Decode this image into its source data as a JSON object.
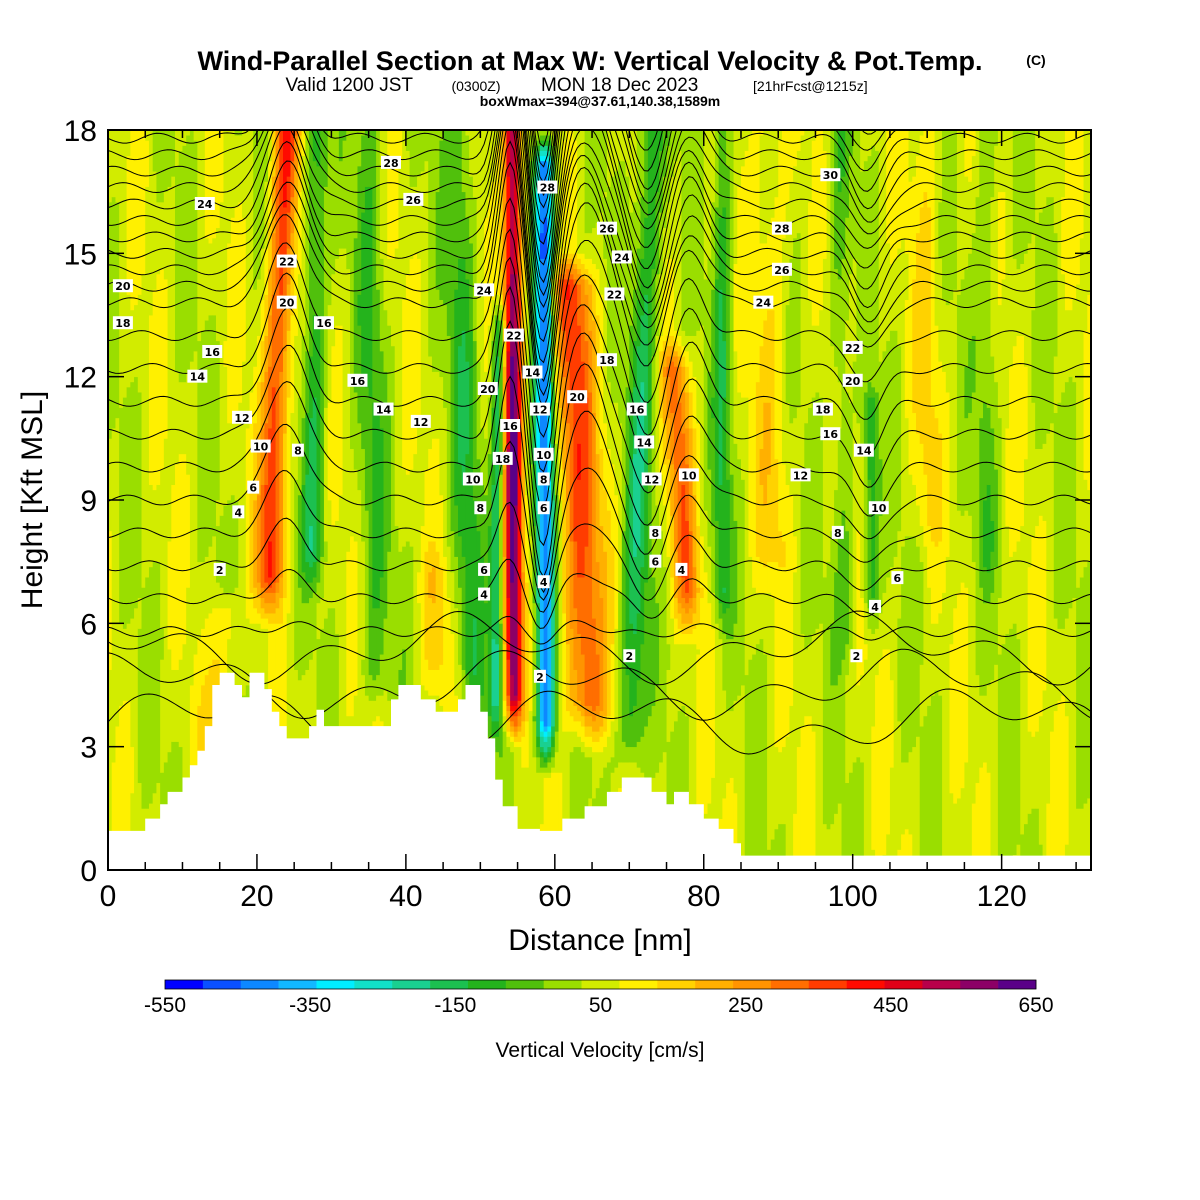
{
  "header": {
    "title": "Wind-Parallel Section at Max W: Vertical Velocity & Pot.Temp.",
    "title_mark": "(C)",
    "sub_valid": "Valid 1200 JST",
    "sub_utc": "(0300Z)",
    "sub_date": "MON 18 Dec 2023",
    "sub_fcst": "[21hrFcst@1215z]",
    "sub_box": "boxWmax=394@37.61,140.38,1589m"
  },
  "chart_data": {
    "type": "heatmap",
    "xlabel": "Distance [nm]",
    "ylabel": "Height [Kft MSL]",
    "xlim": [
      0,
      132
    ],
    "ylim": [
      0,
      18
    ],
    "x_ticks": [
      0,
      20,
      40,
      60,
      80,
      100,
      120
    ],
    "y_ticks": [
      0,
      3,
      6,
      9,
      12,
      15,
      18
    ],
    "colorbar": {
      "title": "Vertical Velocity [cm/s]",
      "min": -550,
      "max": 650,
      "step": 50,
      "tick_values": [
        -550,
        -350,
        -150,
        50,
        250,
        450,
        650
      ],
      "tick_labels": [
        "-550",
        "-350",
        "-150",
        "50",
        "250",
        "450",
        "650"
      ],
      "colors": [
        "#0000ff",
        "#0a50ff",
        "#0d88ff",
        "#12b8ff",
        "#00eeff",
        "#12e0c8",
        "#1ad090",
        "#1cc050",
        "#24b31c",
        "#50c00c",
        "#9ade00",
        "#d2ec00",
        "#fff000",
        "#ffd200",
        "#ffb000",
        "#ff9400",
        "#ff6e00",
        "#ff3c00",
        "#ff0a00",
        "#e00018",
        "#b8004a",
        "#8c0066",
        "#5a0088"
      ]
    },
    "terrain": [
      [
        0,
        0.95
      ],
      [
        5,
        0.95
      ],
      [
        5,
        1.25
      ],
      [
        7,
        1.25
      ],
      [
        7,
        1.6
      ],
      [
        8,
        1.6
      ],
      [
        8,
        1.9
      ],
      [
        10,
        1.9
      ],
      [
        10,
        2.25
      ],
      [
        11,
        2.25
      ],
      [
        11,
        2.55
      ],
      [
        12,
        2.55
      ],
      [
        12,
        2.9
      ],
      [
        13,
        2.9
      ],
      [
        13,
        3.5
      ],
      [
        14,
        3.5
      ],
      [
        14,
        4.5
      ],
      [
        15,
        4.5
      ],
      [
        15,
        4.8
      ],
      [
        17,
        4.8
      ],
      [
        17,
        4.5
      ],
      [
        18,
        4.5
      ],
      [
        18,
        4.2
      ],
      [
        19,
        4.2
      ],
      [
        19,
        4.8
      ],
      [
        21,
        4.8
      ],
      [
        21,
        4.4
      ],
      [
        22,
        4.4
      ],
      [
        22,
        3.85
      ],
      [
        23,
        3.85
      ],
      [
        23,
        3.5
      ],
      [
        24,
        3.5
      ],
      [
        24,
        3.2
      ],
      [
        27,
        3.2
      ],
      [
        27,
        3.5
      ],
      [
        28,
        3.5
      ],
      [
        28,
        3.9
      ],
      [
        29,
        3.9
      ],
      [
        29,
        3.5
      ],
      [
        38,
        3.5
      ],
      [
        38,
        4.15
      ],
      [
        39,
        4.15
      ],
      [
        39,
        4.5
      ],
      [
        42,
        4.5
      ],
      [
        42,
        4.15
      ],
      [
        44,
        4.15
      ],
      [
        44,
        3.85
      ],
      [
        47,
        3.85
      ],
      [
        47,
        4.15
      ],
      [
        48,
        4.15
      ],
      [
        48,
        4.5
      ],
      [
        50,
        4.5
      ],
      [
        50,
        3.85
      ],
      [
        51,
        3.85
      ],
      [
        51,
        3.2
      ],
      [
        52,
        3.2
      ],
      [
        52,
        2.2
      ],
      [
        53,
        2.2
      ],
      [
        53,
        1.55
      ],
      [
        55,
        1.55
      ],
      [
        55,
        1.0
      ],
      [
        58,
        1.0
      ],
      [
        58,
        0.95
      ],
      [
        61,
        0.95
      ],
      [
        61,
        1.25
      ],
      [
        64,
        1.25
      ],
      [
        64,
        1.55
      ],
      [
        67,
        1.55
      ],
      [
        67,
        1.9
      ],
      [
        69,
        1.9
      ],
      [
        69,
        2.25
      ],
      [
        73,
        2.25
      ],
      [
        73,
        1.9
      ],
      [
        75,
        1.9
      ],
      [
        75,
        1.6
      ],
      [
        76,
        1.6
      ],
      [
        76,
        1.9
      ],
      [
        78,
        1.9
      ],
      [
        78,
        1.6
      ],
      [
        80,
        1.6
      ],
      [
        80,
        1.25
      ],
      [
        82,
        1.25
      ],
      [
        82,
        1.0
      ],
      [
        84,
        1.0
      ],
      [
        84,
        0.65
      ],
      [
        85,
        0.65
      ],
      [
        85,
        0.35
      ],
      [
        132,
        0.35
      ]
    ],
    "updrafts": [
      {
        "x_top": 24.0,
        "x_bottom": 21.5,
        "z_top": 18,
        "z_bottom": 6.4,
        "amp": 320,
        "width": 1.8
      },
      {
        "x_top": 54.3,
        "x_bottom": 54.5,
        "z_top": 18,
        "z_bottom": 3.5,
        "amp": 520,
        "width": 1.2
      },
      {
        "x_top": 62.0,
        "x_bottom": 64.5,
        "z_top": 14.5,
        "z_bottom": 3.3,
        "amp": 290,
        "width": 2.8
      },
      {
        "x_top": 76.0,
        "x_bottom": 78.0,
        "z_top": 12.5,
        "z_bottom": 6.0,
        "amp": 230,
        "width": 1.8
      },
      {
        "x_top": 89.0,
        "x_bottom": 89.0,
        "z_top": 18,
        "z_bottom": 7.0,
        "amp": 80,
        "width": 2.5
      },
      {
        "x_top": 110.0,
        "x_bottom": 110.0,
        "z_top": 18,
        "z_bottom": 8.0,
        "amp": 70,
        "width": 2.0
      },
      {
        "x_top": 16.0,
        "x_bottom": 14.0,
        "z_top": 6.5,
        "z_bottom": 3.0,
        "amp": 120,
        "width": 1.6
      },
      {
        "x_top": 44.0,
        "x_bottom": 44.0,
        "z_top": 7.5,
        "z_bottom": 4.3,
        "amp": 80,
        "width": 2.0
      }
    ],
    "downdrafts": [
      {
        "x_top": 58.5,
        "x_bottom": 58.8,
        "z_top": 17.5,
        "z_bottom": 2.8,
        "amp": -470,
        "width": 1.3
      },
      {
        "x_top": 52.5,
        "x_bottom": 52.0,
        "z_top": 13.5,
        "z_bottom": 3.3,
        "amp": -230,
        "width": 0.9
      },
      {
        "x_top": 28.0,
        "x_bottom": 27.5,
        "z_top": 18,
        "z_bottom": 7.0,
        "amp": -170,
        "width": 1.5
      },
      {
        "x_top": 47.0,
        "x_bottom": 49.0,
        "z_top": 18,
        "z_bottom": 3.5,
        "amp": -130,
        "width": 2.0
      },
      {
        "x_top": 73.0,
        "x_bottom": 70.0,
        "z_top": 18,
        "z_bottom": 2.5,
        "amp": -180,
        "width": 1.8
      },
      {
        "x_top": 82.5,
        "x_bottom": 82.5,
        "z_top": 18,
        "z_bottom": 6.0,
        "amp": -150,
        "width": 1.2
      },
      {
        "x_top": 35.0,
        "x_bottom": 36.0,
        "z_top": 18,
        "z_bottom": 4.0,
        "amp": -100,
        "width": 2.0
      },
      {
        "x_top": 98.0,
        "x_bottom": 99.0,
        "z_top": 18,
        "z_bottom": 5.0,
        "amp": -90,
        "width": 1.5
      },
      {
        "x_top": 102.5,
        "x_bottom": 102.5,
        "z_top": 11.5,
        "z_bottom": 6.0,
        "amp": -160,
        "width": 1.0
      },
      {
        "x_top": 118.0,
        "x_bottom": 118.0,
        "z_top": 18,
        "z_bottom": 7.0,
        "amp": -80,
        "width": 1.5
      }
    ],
    "theta_contours": {
      "min": 2,
      "max": 30,
      "step": 1,
      "base_height": 5.8,
      "spacing_low": 0.8,
      "spacing_high": 0.4,
      "ripples": [
        {
          "x": 24.0,
          "amp": 2.2,
          "width": 3.5
        },
        {
          "x": 54.0,
          "amp": 3.5,
          "width": 2.2
        },
        {
          "x": 58.5,
          "amp": -3.0,
          "width": 2.2
        },
        {
          "x": 64.0,
          "amp": 2.4,
          "width": 4.0
        },
        {
          "x": 72.5,
          "amp": -1.6,
          "width": 3.0
        },
        {
          "x": 78.0,
          "amp": 1.4,
          "width": 3.0
        },
        {
          "x": 102.0,
          "amp": -1.2,
          "width": 3.0
        }
      ]
    },
    "contour_labels": [
      {
        "text": "28",
        "x": 38.0,
        "z": 17.2
      },
      {
        "text": "24",
        "x": 13.0,
        "z": 16.2
      },
      {
        "text": "26",
        "x": 41.0,
        "z": 16.3
      },
      {
        "text": "28",
        "x": 59.0,
        "z": 16.6
      },
      {
        "text": "30",
        "x": 97.0,
        "z": 16.9
      },
      {
        "text": "26",
        "x": 67.0,
        "z": 15.6
      },
      {
        "text": "28",
        "x": 90.5,
        "z": 15.6
      },
      {
        "text": "24",
        "x": 69.0,
        "z": 14.9
      },
      {
        "text": "22",
        "x": 24.0,
        "z": 14.8
      },
      {
        "text": "26",
        "x": 90.5,
        "z": 14.6
      },
      {
        "text": "20",
        "x": 2.0,
        "z": 14.2
      },
      {
        "text": "24",
        "x": 50.5,
        "z": 14.1
      },
      {
        "text": "22",
        "x": 68.0,
        "z": 14.0
      },
      {
        "text": "24",
        "x": 88.0,
        "z": 13.8
      },
      {
        "text": "20",
        "x": 24.0,
        "z": 13.8
      },
      {
        "text": "18",
        "x": 2.0,
        "z": 13.3
      },
      {
        "text": "16",
        "x": 29.0,
        "z": 13.3
      },
      {
        "text": "22",
        "x": 54.5,
        "z": 13.0
      },
      {
        "text": "16",
        "x": 14.0,
        "z": 12.6
      },
      {
        "text": "22",
        "x": 100.0,
        "z": 12.7
      },
      {
        "text": "18",
        "x": 67.0,
        "z": 12.4
      },
      {
        "text": "14",
        "x": 57.0,
        "z": 12.1
      },
      {
        "text": "14",
        "x": 12.0,
        "z": 12.0
      },
      {
        "text": "16",
        "x": 33.5,
        "z": 11.9
      },
      {
        "text": "20",
        "x": 100.0,
        "z": 11.9
      },
      {
        "text": "20",
        "x": 51.0,
        "z": 11.7
      },
      {
        "text": "20",
        "x": 63.0,
        "z": 11.5
      },
      {
        "text": "16",
        "x": 71.0,
        "z": 11.2
      },
      {
        "text": "14",
        "x": 37.0,
        "z": 11.2
      },
      {
        "text": "18",
        "x": 96.0,
        "z": 11.2
      },
      {
        "text": "12",
        "x": 58.0,
        "z": 11.2
      },
      {
        "text": "12",
        "x": 18.0,
        "z": 11.0
      },
      {
        "text": "12",
        "x": 42.0,
        "z": 10.9
      },
      {
        "text": "16",
        "x": 54.0,
        "z": 10.8
      },
      {
        "text": "16",
        "x": 97.0,
        "z": 10.6
      },
      {
        "text": "14",
        "x": 72.0,
        "z": 10.4
      },
      {
        "text": "10",
        "x": 20.5,
        "z": 10.3
      },
      {
        "text": "8",
        "x": 25.5,
        "z": 10.2
      },
      {
        "text": "14",
        "x": 101.5,
        "z": 10.2
      },
      {
        "text": "10",
        "x": 58.5,
        "z": 10.1
      },
      {
        "text": "18",
        "x": 53.0,
        "z": 10.0
      },
      {
        "text": "8",
        "x": 58.5,
        "z": 9.5
      },
      {
        "text": "12",
        "x": 73.0,
        "z": 9.5
      },
      {
        "text": "12",
        "x": 93.0,
        "z": 9.6
      },
      {
        "text": "10",
        "x": 49.0,
        "z": 9.5
      },
      {
        "text": "10",
        "x": 78.0,
        "z": 9.6
      },
      {
        "text": "6",
        "x": 19.5,
        "z": 9.3
      },
      {
        "text": "8",
        "x": 50.0,
        "z": 8.8
      },
      {
        "text": "6",
        "x": 58.5,
        "z": 8.8
      },
      {
        "text": "4",
        "x": 17.5,
        "z": 8.7
      },
      {
        "text": "10",
        "x": 103.5,
        "z": 8.8
      },
      {
        "text": "8",
        "x": 73.5,
        "z": 8.2
      },
      {
        "text": "8",
        "x": 98.0,
        "z": 8.2
      },
      {
        "text": "6",
        "x": 73.5,
        "z": 7.5
      },
      {
        "text": "2",
        "x": 15.0,
        "z": 7.3
      },
      {
        "text": "6",
        "x": 50.5,
        "z": 7.3
      },
      {
        "text": "4",
        "x": 77.0,
        "z": 7.3
      },
      {
        "text": "6",
        "x": 106.0,
        "z": 7.1
      },
      {
        "text": "4",
        "x": 58.5,
        "z": 7.0
      },
      {
        "text": "4",
        "x": 50.5,
        "z": 6.7
      },
      {
        "text": "4",
        "x": 103.0,
        "z": 6.4
      },
      {
        "text": "2",
        "x": 70.0,
        "z": 5.2
      },
      {
        "text": "2",
        "x": 100.5,
        "z": 5.2
      },
      {
        "text": "2",
        "x": 58.0,
        "z": 4.7
      }
    ]
  }
}
